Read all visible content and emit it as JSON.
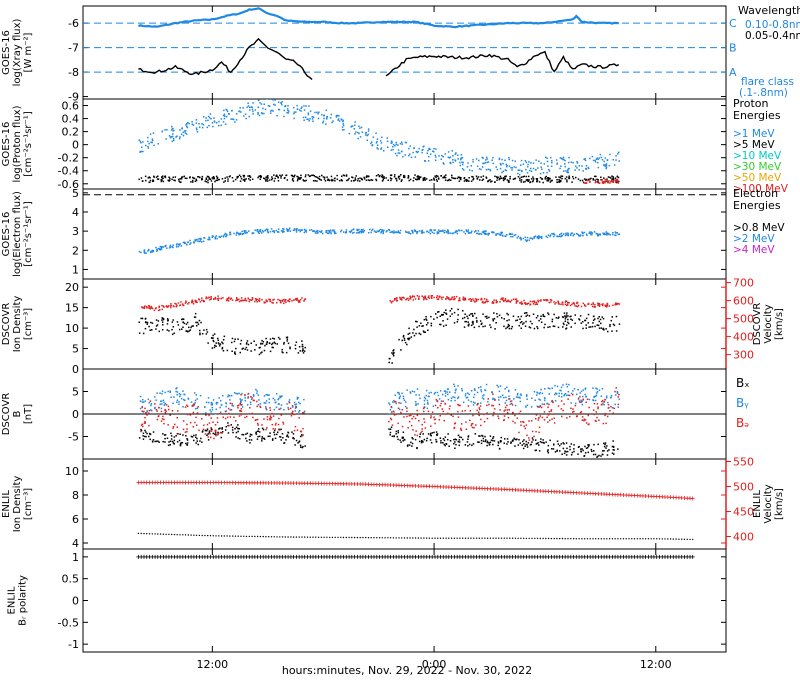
{
  "footer": {
    "xlabel": "hours:minutes, Nov. 29, 2022 - Nov. 30, 2022"
  },
  "x_ticks": [
    "12:00",
    "0:00",
    "12:00"
  ],
  "chart_data": [
    {
      "type": "line",
      "name": "xray",
      "ylabel_lines": [
        "GOES-16",
        "log(Xray flux)",
        "[W m⁻²]"
      ],
      "yticks": [
        -6,
        -7,
        -8,
        -9
      ],
      "ylim": [
        -9.1,
        -5.3
      ],
      "legend_title": "Wavelength",
      "legend": [
        {
          "label": "0.10-0.8nm",
          "color": "#1e88e5"
        },
        {
          "label": "0.05-0.4nm",
          "color": "#000000"
        }
      ],
      "flare_levels": [
        {
          "label": "C",
          "value": -6
        },
        {
          "label": "B",
          "value": -7
        },
        {
          "label": "A",
          "value": -8
        }
      ],
      "flare_class_lines": [
        "flare class",
        "(.1-.8nm)"
      ],
      "series": [
        {
          "name": "0.10-0.8nm",
          "color": "#1e88e5",
          "x": [
            8.0,
            9.0,
            10.0,
            11.0,
            12.0,
            12.8,
            13.5,
            14.0,
            14.5,
            15.0,
            15.5,
            16.0,
            17.0,
            18.0,
            19.0,
            20.0,
            21.0,
            22.0,
            23.0,
            24.0,
            25.0,
            26.0,
            27.0,
            28.0,
            29.0,
            30.0,
            31.5,
            31.7,
            32.0,
            33.0,
            34.0
          ],
          "y": [
            -6.1,
            -6.15,
            -6.0,
            -5.9,
            -5.85,
            -5.7,
            -5.6,
            -5.45,
            -5.4,
            -5.6,
            -5.7,
            -5.9,
            -5.95,
            -5.95,
            -6.0,
            -6.0,
            -5.95,
            -5.95,
            -5.95,
            -6.1,
            -6.15,
            -6.1,
            -6.05,
            -6.0,
            -6.0,
            -6.0,
            -5.85,
            -5.7,
            -5.95,
            -6.0,
            -6.0
          ]
        },
        {
          "name": "0.05-0.4nm",
          "color": "#000000",
          "x": [
            8.0,
            9.0,
            10.0,
            11.0,
            12.0,
            12.5,
            13.0,
            13.5,
            14.0,
            14.5,
            15.0,
            15.5,
            16.0,
            16.5,
            17.0,
            17.4,
            21.4,
            22.0,
            22.5,
            23.0,
            24.0,
            25.0,
            26.0,
            27.0,
            28.0,
            28.5,
            29.0,
            29.5,
            30.0,
            30.5,
            31.0,
            31.5,
            32.0,
            33.0,
            34.0
          ],
          "y": [
            -7.9,
            -8.0,
            -7.8,
            -8.1,
            -7.9,
            -7.6,
            -8.0,
            -7.5,
            -7.0,
            -6.7,
            -7.0,
            -7.2,
            -7.5,
            -7.6,
            -8.0,
            -8.3,
            -8.2,
            -7.8,
            -7.5,
            -7.4,
            -7.35,
            -7.4,
            -7.4,
            -7.3,
            -7.5,
            -7.8,
            -7.6,
            -7.3,
            -7.2,
            -8.0,
            -7.4,
            -7.9,
            -7.7,
            -7.8,
            -7.7
          ]
        }
      ]
    },
    {
      "type": "scatter",
      "name": "protons",
      "ylabel_lines": [
        "GOES-16",
        "log(Proton flux)",
        "[cm⁻²s⁻¹sr⁻¹]"
      ],
      "yticks": [
        0.6,
        0.4,
        0.2,
        0.0,
        -0.2,
        -0.4,
        -0.6
      ],
      "ylim": [
        -0.68,
        0.7
      ],
      "legend_title": "Proton Energies",
      "legend": [
        {
          "label": ">1 MeV",
          "color": "#1e88e5"
        },
        {
          "label": ">5 MeV",
          "color": "#000000"
        },
        {
          "label": ">10 MeV",
          "color": "#00c8c8"
        },
        {
          "label": ">30 MeV",
          "color": "#33cc33"
        },
        {
          "label": ">50 MeV",
          "color": "#e8a800"
        },
        {
          "label": ">100 MeV",
          "color": "#e02020"
        }
      ],
      "series": [
        {
          "name": ">1 MeV",
          "color": "#1e88e5",
          "x": [
            8,
            9,
            10,
            11,
            12,
            13,
            14,
            15,
            16,
            17,
            18,
            19,
            20,
            21,
            22,
            23,
            24,
            25,
            26,
            27,
            28,
            29,
            30,
            31,
            32,
            33,
            34
          ],
          "y": [
            0.0,
            0.1,
            0.2,
            0.3,
            0.4,
            0.45,
            0.55,
            0.6,
            0.55,
            0.5,
            0.45,
            0.35,
            0.2,
            0.05,
            -0.05,
            -0.1,
            -0.15,
            -0.2,
            -0.3,
            -0.3,
            -0.3,
            -0.35,
            -0.3,
            -0.3,
            -0.3,
            -0.25,
            -0.2
          ],
          "spread": 0.12
        },
        {
          "name": ">5 MeV",
          "color": "#000000",
          "x": [
            8,
            10,
            12,
            14,
            16,
            18,
            20,
            22,
            24,
            26,
            28,
            30,
            32,
            34
          ],
          "y": [
            -0.52,
            -0.52,
            -0.52,
            -0.5,
            -0.5,
            -0.5,
            -0.5,
            -0.5,
            -0.5,
            -0.52,
            -0.52,
            -0.52,
            -0.52,
            -0.52
          ],
          "spread": 0.05
        },
        {
          "name": ">100 MeV",
          "color": "#e02020",
          "x": [
            8,
            12,
            16,
            20,
            24,
            28,
            32,
            34
          ],
          "y": [
            -0.55,
            -0.56,
            -0.55,
            -0.55,
            -0.55,
            -0.56,
            -0.55,
            -0.55
          ],
          "spread": 0.03
        }
      ]
    },
    {
      "type": "scatter",
      "name": "electrons",
      "ylabel_lines": [
        "GOES-16",
        "log(Electron flux)",
        "[cm⁻²s⁻¹sr⁻¹]"
      ],
      "yticks": [
        5,
        4,
        3,
        2,
        1
      ],
      "ylim": [
        0.5,
        5.2
      ],
      "ref_line": 4.9,
      "legend_title": "Electron Energies",
      "legend": [
        {
          "label": ">0.8 MeV",
          "color": "#000000"
        },
        {
          "label": ">2 MeV",
          "color": "#1e88e5"
        },
        {
          "label": ">4 MeV",
          "color": "#cc22cc"
        }
      ],
      "series": [
        {
          "name": ">2 MeV",
          "color": "#1e88e5",
          "x": [
            8,
            9,
            10,
            11,
            12,
            13,
            14,
            16,
            18,
            20,
            22,
            24,
            26,
            28,
            29,
            30,
            32,
            34
          ],
          "y": [
            1.9,
            2.1,
            2.3,
            2.5,
            2.7,
            2.9,
            3.0,
            3.1,
            3.0,
            3.05,
            3.0,
            3.0,
            3.0,
            2.85,
            2.6,
            2.8,
            2.9,
            2.9
          ],
          "spread": 0.1
        }
      ]
    },
    {
      "type": "scatter",
      "name": "dscovr_plasma",
      "ylabel_lines": [
        "DSCOVR",
        "Ion Density",
        "[cm⁻³]"
      ],
      "yticks": [
        20,
        15,
        10,
        5,
        0
      ],
      "ylim": [
        0,
        22
      ],
      "ylabel2_lines": [
        "DSCOVR",
        "Velocity",
        "[km/s]"
      ],
      "yticks2": [
        700,
        600,
        500,
        400,
        300
      ],
      "ylim2": [
        220,
        720
      ],
      "series": [
        {
          "name": "Density",
          "color": "#000000",
          "x": [
            8,
            9,
            10,
            11,
            12,
            13,
            14,
            15,
            16,
            17,
            21.5,
            22,
            23,
            24,
            25,
            26,
            28,
            30,
            32,
            34
          ],
          "y": [
            10.5,
            11,
            10,
            12,
            7,
            6,
            5,
            6,
            6,
            5,
            2,
            6,
            10,
            12,
            13,
            12,
            12,
            12,
            12,
            11
          ],
          "spread": 2
        },
        {
          "name": "Velocity",
          "color": "#e02020",
          "axis": "right",
          "x": [
            8,
            9,
            10,
            11,
            12,
            13,
            14,
            15,
            16,
            17,
            21.5,
            22,
            23,
            24,
            25,
            26,
            27,
            28,
            29,
            30,
            31,
            32,
            33,
            34
          ],
          "y": [
            570,
            560,
            580,
            600,
            620,
            610,
            610,
            600,
            600,
            610,
            600,
            610,
            620,
            620,
            615,
            610,
            600,
            610,
            590,
            600,
            590,
            580,
            580,
            580
          ],
          "spread": 12
        }
      ]
    },
    {
      "type": "scatter",
      "name": "dscovr_mag",
      "ylabel_lines": [
        "DSCOVR",
        "B",
        "[nT]"
      ],
      "yticks": [
        5,
        0,
        -5
      ],
      "ylim": [
        -10,
        10
      ],
      "legend": [
        {
          "label": "Bₓ",
          "color": "#000000"
        },
        {
          "label": "Bᵧ",
          "color": "#1e88e5"
        },
        {
          "label": "Bₔ",
          "color": "#e02020"
        }
      ],
      "series": [
        {
          "name": "Bx",
          "color": "#000000",
          "x": [
            8,
            9,
            10,
            11,
            12,
            13,
            14,
            15,
            16,
            17,
            21.5,
            22,
            23,
            24,
            25,
            26,
            27,
            28,
            29,
            30,
            31,
            32,
            33,
            34
          ],
          "y": [
            -4,
            -5,
            -5.5,
            -6,
            -4,
            -3,
            -5,
            -4,
            -5,
            -6,
            -3,
            -5,
            -6,
            -5,
            -6,
            -5.5,
            -6,
            -6.5,
            -6,
            -7,
            -7.5,
            -8,
            -8,
            -7
          ],
          "spread": 1.5
        },
        {
          "name": "By",
          "color": "#1e88e5",
          "x": [
            8,
            9,
            10,
            11,
            12,
            13,
            14,
            15,
            16,
            17,
            21.5,
            22,
            23,
            24,
            25,
            26,
            27,
            28,
            29,
            30,
            31,
            32,
            33,
            34
          ],
          "y": [
            2,
            3,
            4,
            3,
            2,
            3,
            4,
            3,
            3,
            2,
            2,
            3,
            4,
            3,
            5,
            4,
            5,
            4,
            3,
            4,
            5,
            4,
            4,
            3
          ],
          "spread": 2
        },
        {
          "name": "Bz",
          "color": "#e02020",
          "x": [
            8,
            9,
            10,
            11,
            12,
            13,
            14,
            15,
            16,
            17,
            21.5,
            22,
            23,
            24,
            25,
            26,
            27,
            28,
            29,
            30,
            31,
            32,
            33,
            34
          ],
          "y": [
            -1,
            1,
            -2,
            0,
            -3,
            1,
            2,
            -1,
            0,
            -2,
            1,
            0,
            -2,
            1,
            0,
            -1,
            2,
            1,
            -3,
            0,
            2,
            1,
            0,
            4
          ],
          "spread": 3
        }
      ]
    },
    {
      "type": "line",
      "name": "enlil_plasma",
      "ylabel_lines": [
        "ENLIL",
        "Ion Density",
        "[cm⁻³]"
      ],
      "yticks": [
        10,
        8,
        6,
        4
      ],
      "ylim": [
        3.5,
        11
      ],
      "ylabel2_lines": [
        "ENLIL",
        "Velocity",
        "[km/s]"
      ],
      "yticks2": [
        550,
        500,
        450,
        400
      ],
      "ylim2": [
        375,
        555
      ],
      "series": [
        {
          "name": "Velocity",
          "color": "#e02020",
          "axis": "right",
          "marker": "plus",
          "x": [
            8,
            12,
            16,
            20,
            24,
            28,
            32,
            36,
            38
          ],
          "y": [
            508,
            508,
            507,
            505,
            500,
            494,
            487,
            480,
            476
          ]
        },
        {
          "name": "Density",
          "color": "#000000",
          "marker": "dot",
          "x": [
            8,
            12,
            16,
            20,
            24,
            28,
            32,
            36,
            38
          ],
          "y": [
            4.8,
            4.6,
            4.5,
            4.45,
            4.4,
            4.4,
            4.35,
            4.35,
            4.3
          ]
        }
      ]
    },
    {
      "type": "line",
      "name": "enlil_polarity",
      "ylabel_lines": [
        "ENLIL",
        "Bᵣ polarity"
      ],
      "yticks": [
        1.0,
        0.5,
        0.0,
        -0.5,
        -1.0
      ],
      "ylim": [
        -1.18,
        1.18
      ],
      "series": [
        {
          "name": "Polarity",
          "color": "#000000",
          "marker": "plus",
          "x": [
            8,
            38
          ],
          "y": [
            1.0,
            1.0
          ]
        }
      ]
    }
  ]
}
